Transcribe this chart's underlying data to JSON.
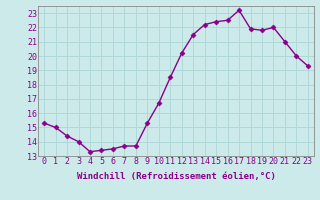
{
  "x": [
    0,
    1,
    2,
    3,
    4,
    5,
    6,
    7,
    8,
    9,
    10,
    11,
    12,
    13,
    14,
    15,
    16,
    17,
    18,
    19,
    20,
    21,
    22,
    23
  ],
  "y": [
    15.3,
    15.0,
    14.4,
    14.0,
    13.3,
    13.4,
    13.5,
    13.7,
    13.7,
    15.3,
    16.7,
    18.5,
    20.2,
    21.5,
    22.2,
    22.4,
    22.5,
    23.2,
    21.9,
    21.8,
    22.0,
    21.0,
    20.0,
    19.3
  ],
  "line_color": "#8B008B",
  "marker": "D",
  "marker_size": 2.5,
  "bg_color": "#cceaea",
  "grid_color": "#b0d8d8",
  "xlabel": "Windchill (Refroidissement éolien,°C)",
  "xlabel_fontsize": 6.5,
  "ylim": [
    13,
    23.5
  ],
  "yticks": [
    13,
    14,
    15,
    16,
    17,
    18,
    19,
    20,
    21,
    22,
    23
  ],
  "xticks": [
    0,
    1,
    2,
    3,
    4,
    5,
    6,
    7,
    8,
    9,
    10,
    11,
    12,
    13,
    14,
    15,
    16,
    17,
    18,
    19,
    20,
    21,
    22,
    23
  ],
  "tick_fontsize": 6.0,
  "line_width": 1.0,
  "spine_color": "#888888"
}
